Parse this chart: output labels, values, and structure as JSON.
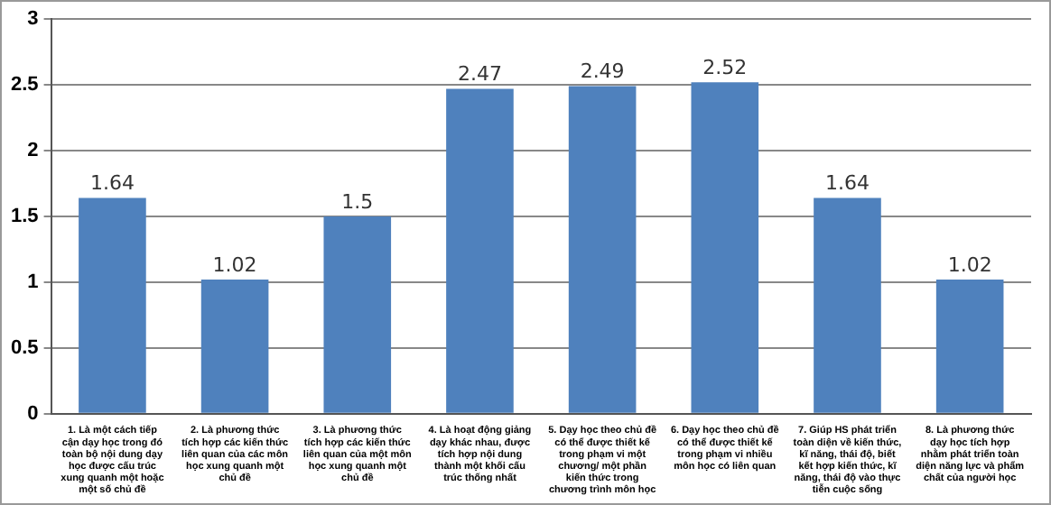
{
  "chart_data": {
    "type": "bar",
    "categories": [
      "1. Là một cách tiếp cận dạy học trong đó toàn bộ nội dung dạy học được cấu trúc xung quanh một hoặc một số chủ đề",
      "2. Là phương thức tích hợp các kiến thức liên quan của các môn học xung quanh một chủ đề",
      "3. Là phương thức tích hợp các kiến thức liên quan của một môn học xung quanh một chủ đề",
      "4. Là hoạt động giảng dạy khác nhau, được tích hợp nội dung thành một khối cấu trúc thống nhất",
      "5. Dạy học theo chủ đề có thể được thiết kế trong phạm vi một chương/ một phần kiến thức trong chương trình môn học",
      "6. Dạy học theo chủ đề có thể được thiết kế trong phạm vi nhiều môn học có liên quan",
      "7. Giúp HS phát triển toàn diện về kiến thức, kĩ năng, thái độ, biết kết hợp kiến thức, kĩ năng, thái độ vào thực tiễn cuộc sống",
      "8. Là phương thức dạy học tích hợp nhằm phát triển toàn diện năng lực và phẩm chất của người học"
    ],
    "values": [
      1.64,
      1.02,
      1.5,
      2.47,
      2.49,
      2.52,
      1.64,
      1.02
    ],
    "color": "#4f81bd",
    "data_labels": true,
    "ylim": [
      0,
      3
    ],
    "yticks": [
      0,
      0.5,
      1,
      1.5,
      2,
      2.5,
      3
    ],
    "grid": "y"
  }
}
